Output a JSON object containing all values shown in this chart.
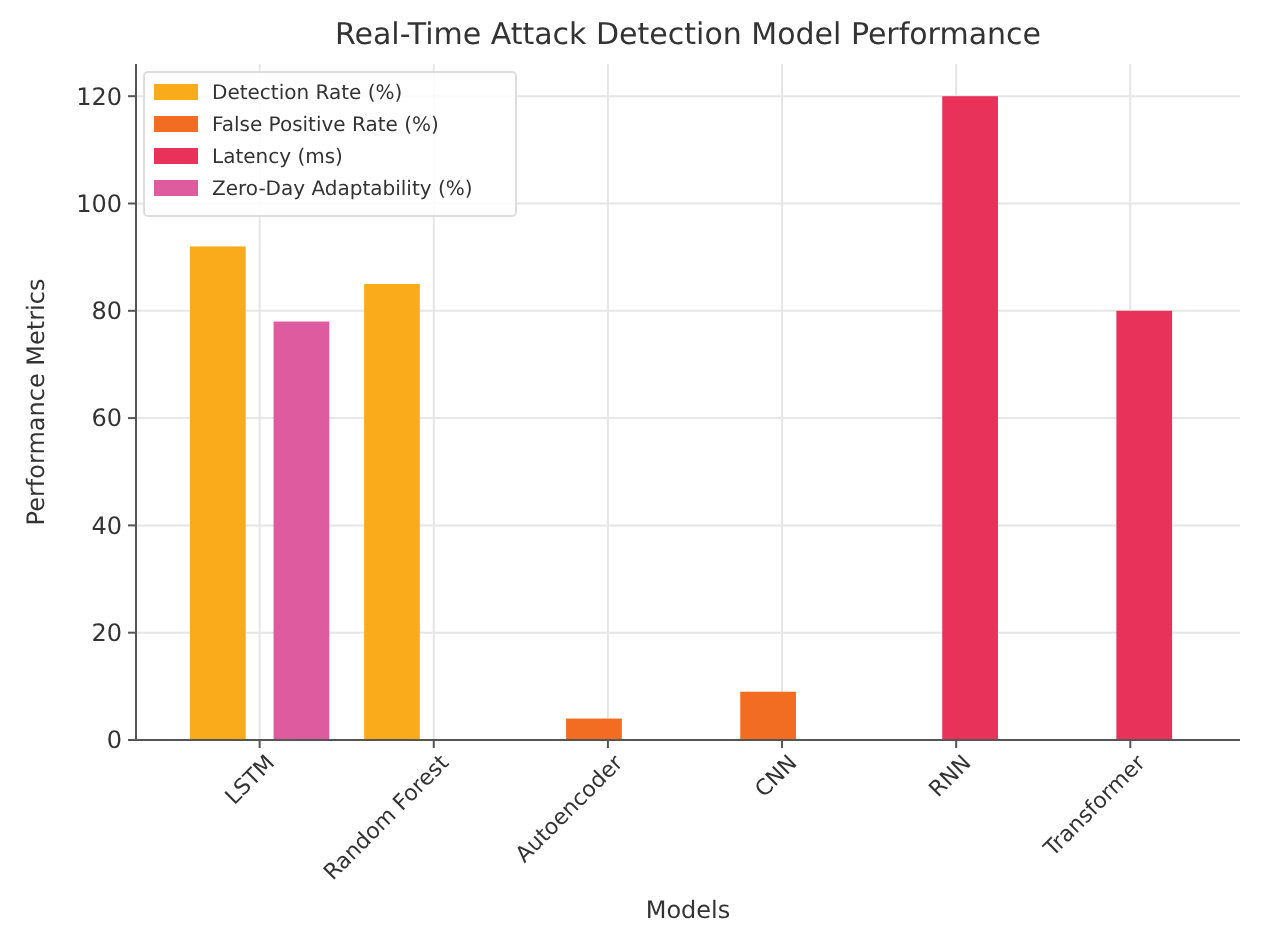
{
  "chart_data": {
    "type": "bar",
    "title": "Real-Time Attack Detection Model Performance",
    "xlabel": "Models",
    "ylabel": "Performance Metrics",
    "categories": [
      "LSTM",
      "Random Forest",
      "Autoencoder",
      "CNN",
      "RNN",
      "Transformer"
    ],
    "series": [
      {
        "name": "Detection Rate (%)",
        "color": "#f9ab1c",
        "values": [
          92,
          85,
          null,
          null,
          null,
          null
        ]
      },
      {
        "name": "False Positive Rate (%)",
        "color": "#f26d21",
        "values": [
          null,
          null,
          4,
          9,
          null,
          null
        ]
      },
      {
        "name": "Latency (ms)",
        "color": "#e8325a",
        "values": [
          null,
          null,
          null,
          null,
          120,
          80
        ]
      },
      {
        "name": "Zero-Day Adaptability (%)",
        "color": "#de5ba0",
        "values": [
          78,
          null,
          null,
          null,
          null,
          null
        ]
      }
    ],
    "ylim": [
      0,
      126
    ],
    "yticks": [
      0,
      20,
      40,
      60,
      80,
      100,
      120
    ],
    "grid": true,
    "legend": "top left"
  }
}
